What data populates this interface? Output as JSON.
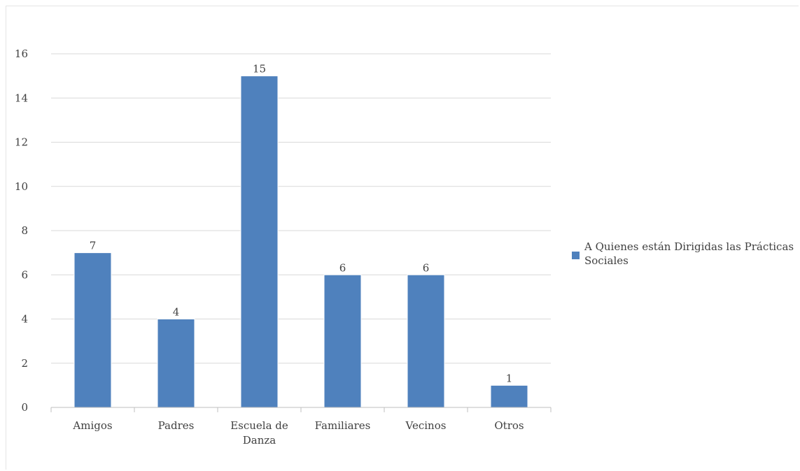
{
  "chart_data": {
    "type": "bar",
    "categories": [
      "Amigos",
      "Padres",
      "Escuela de Danza",
      "Familiares",
      "Vecinos",
      "Otros"
    ],
    "series": [
      {
        "name": "A Quienes están Dirigidas las Prácticas Sociales",
        "values": [
          7,
          4,
          15,
          6,
          6,
          1
        ],
        "color": "#4f81bd"
      }
    ],
    "ylim": [
      0,
      16
    ],
    "yticks": [
      "0",
      "2",
      "4",
      "6",
      "8",
      "10",
      "12",
      "14",
      "16"
    ],
    "grid": true,
    "legend_position": "right",
    "data_labels": true,
    "gridline_color": "#d9d9d9",
    "axis_color": "#bfbfbf"
  }
}
